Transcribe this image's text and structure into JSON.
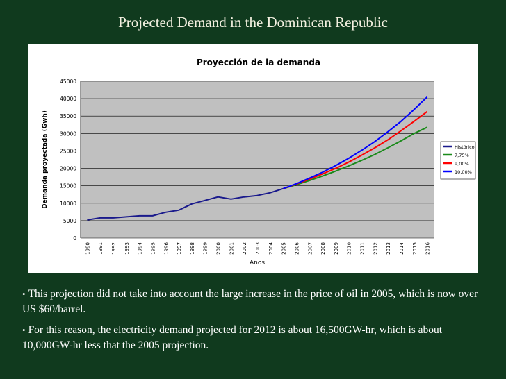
{
  "slide": {
    "title": "Projected Demand in the Dominican Republic",
    "bullets": [
      "This projection did not take into account the large increase in the price of oil in 2005, which is now over US $60/barrel.",
      "For this reason, the electricity demand projected for 2012 is about 16,500GW-hr, which is about 10,000GW-hr less that the 2005 projection."
    ]
  },
  "chart_data": {
    "type": "line",
    "title": "Proyección de la demanda",
    "xlabel": "Años",
    "ylabel": "Demanda proyectada (Gwh)",
    "ylim": [
      0,
      45000
    ],
    "yticks": [
      0,
      5000,
      10000,
      15000,
      20000,
      25000,
      30000,
      35000,
      40000,
      45000
    ],
    "categories": [
      "1990",
      "1991",
      "1992",
      "1993",
      "1994",
      "1995",
      "1996",
      "1997",
      "1998",
      "1999",
      "2000",
      "2001",
      "2002",
      "2003",
      "2004",
      "2005",
      "2006",
      "2007",
      "2008",
      "2009",
      "2010",
      "2011",
      "2012",
      "2013",
      "2014",
      "2015",
      "2016"
    ],
    "grid": true,
    "legend_position": "right",
    "plot_background": "#c0c0c0",
    "series": [
      {
        "name": "Histórico",
        "color": "#1a1a8c",
        "values": [
          5200,
          5800,
          5800,
          6100,
          6400,
          6400,
          7400,
          8000,
          9800,
          10800,
          11800,
          11200,
          11800,
          12200,
          13000,
          14200,
          null,
          null,
          null,
          null,
          null,
          null,
          null,
          null,
          null,
          null,
          null
        ]
      },
      {
        "name": "7,75%",
        "color": "#1a8a1a",
        "values": [
          null,
          null,
          null,
          null,
          null,
          null,
          null,
          null,
          null,
          null,
          null,
          null,
          null,
          null,
          null,
          14200,
          15300,
          16500,
          17800,
          19200,
          20700,
          22300,
          24000,
          25900,
          27900,
          30000,
          31800
        ]
      },
      {
        "name": "9,00%",
        "color": "#ff0000",
        "values": [
          null,
          null,
          null,
          null,
          null,
          null,
          null,
          null,
          null,
          null,
          null,
          null,
          null,
          null,
          null,
          14200,
          15500,
          16900,
          18400,
          20000,
          21800,
          23800,
          25900,
          28200,
          30800,
          33500,
          36300
        ]
      },
      {
        "name": "10,00%",
        "color": "#0000ff",
        "values": [
          null,
          null,
          null,
          null,
          null,
          null,
          null,
          null,
          null,
          null,
          null,
          null,
          null,
          null,
          null,
          14200,
          15600,
          17200,
          18900,
          20800,
          22900,
          25200,
          27700,
          30500,
          33500,
          36900,
          40500
        ]
      }
    ]
  }
}
